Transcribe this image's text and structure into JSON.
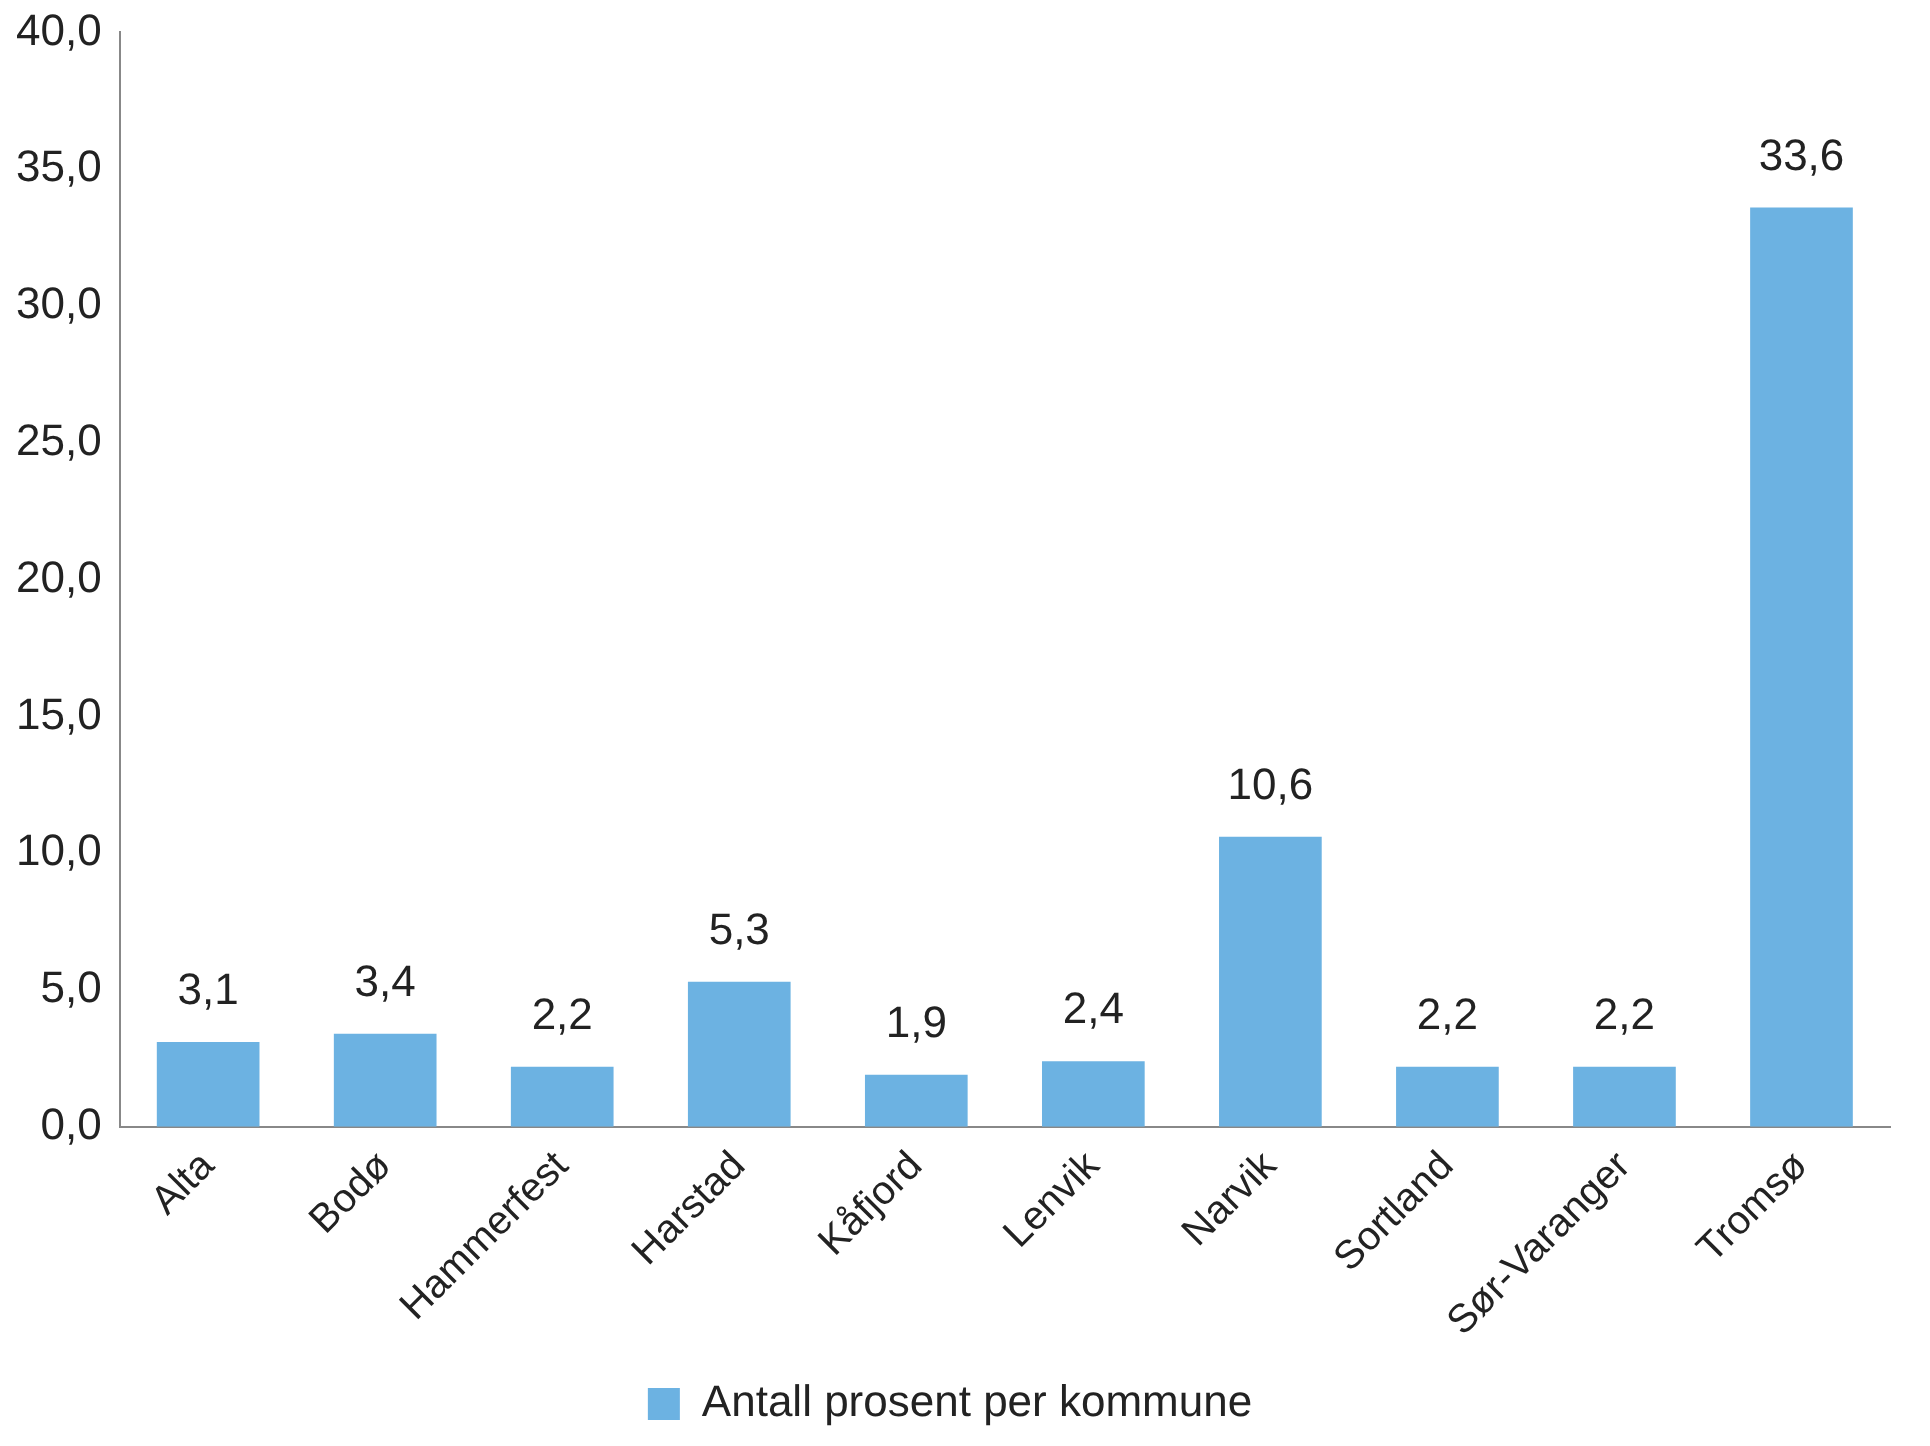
{
  "chart_data": {
    "type": "bar",
    "categories": [
      "Alta",
      "Bodø",
      "Hammerfest",
      "Harstad",
      "Kåfjord",
      "Lenvik",
      "Narvik",
      "Sortland",
      "Sør-Varanger",
      "Tromsø"
    ],
    "series": [
      {
        "name": "Antall prosent per kommune",
        "color": "#6cb2e2",
        "values": [
          3.1,
          3.4,
          2.2,
          5.3,
          1.9,
          2.4,
          10.6,
          2.2,
          2.2,
          33.6
        ],
        "value_labels": [
          "3,1",
          "3,4",
          "2,2",
          "5,3",
          "1,9",
          "2,4",
          "10,6",
          "2,2",
          "2,2",
          "33,6"
        ]
      }
    ],
    "ylim": [
      0,
      40
    ],
    "yticks": [
      {
        "value": 0,
        "label": "0,0"
      },
      {
        "value": 5,
        "label": "5,0"
      },
      {
        "value": 10,
        "label": "10,0"
      },
      {
        "value": 15,
        "label": "15,0"
      },
      {
        "value": 20,
        "label": "20,0"
      },
      {
        "value": 25,
        "label": "25,0"
      },
      {
        "value": 30,
        "label": "30,0"
      },
      {
        "value": 35,
        "label": "35,0"
      },
      {
        "value": 40,
        "label": "40,0"
      }
    ],
    "grid": false,
    "legend": "bottom"
  }
}
